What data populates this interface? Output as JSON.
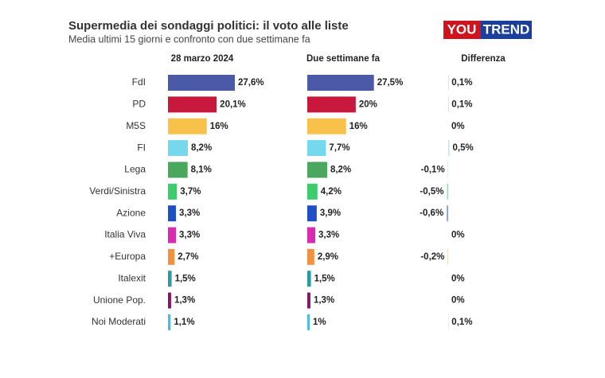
{
  "chart_data": {
    "type": "bar",
    "orientation": "horizontal",
    "title": "Supermedia dei sondaggi politici: il voto alle liste",
    "subtitle": "Media ultimi 15 giorni e confronto con due settimane fa",
    "logo": {
      "left": "YOU",
      "right": "TREND"
    },
    "categories": [
      "FdI",
      "PD",
      "M5S",
      "FI",
      "Lega",
      "Verdi/Sinistra",
      "Azione",
      "Italia Viva",
      "+Europa",
      "Italexit",
      "Unione Pop.",
      "Noi Moderati"
    ],
    "colors": [
      "#4a5aa8",
      "#c8193c",
      "#f8c24a",
      "#76d8ec",
      "#4aa85e",
      "#3dcc6c",
      "#1f4fc4",
      "#d92bb1",
      "#f39143",
      "#2b9aa0",
      "#8b1468",
      "#4bbedf"
    ],
    "series": [
      {
        "name": "28 marzo 2024",
        "values": [
          27.6,
          20.1,
          16,
          8.2,
          8.1,
          3.7,
          3.3,
          3.3,
          2.7,
          1.5,
          1.3,
          1.1
        ],
        "value_labels": [
          "27,6%",
          "20,1%",
          "16%",
          "8,2%",
          "8,1%",
          "3,7%",
          "3,3%",
          "3,3%",
          "2,7%",
          "1,5%",
          "1,3%",
          "1,1%"
        ]
      },
      {
        "name": "Due settimane fa",
        "values": [
          27.5,
          20,
          16,
          7.7,
          8.2,
          4.2,
          3.9,
          3.3,
          2.9,
          1.5,
          1.3,
          1
        ],
        "value_labels": [
          "27,5%",
          "20%",
          "16%",
          "7,7%",
          "8,2%",
          "4,2%",
          "3,9%",
          "3,3%",
          "2,9%",
          "1,5%",
          "1,3%",
          "1%"
        ]
      },
      {
        "name": "Differenza",
        "values": [
          0.1,
          0.1,
          0,
          0.5,
          -0.1,
          -0.5,
          -0.6,
          0,
          -0.2,
          0,
          0,
          0.1
        ],
        "value_labels": [
          "0,1%",
          "0,1%",
          "0%",
          "0,5%",
          "-0,1%",
          "-0,5%",
          "-0,6%",
          "0%",
          "-0,2%",
          "0%",
          "0%",
          "0,1%"
        ]
      }
    ]
  }
}
